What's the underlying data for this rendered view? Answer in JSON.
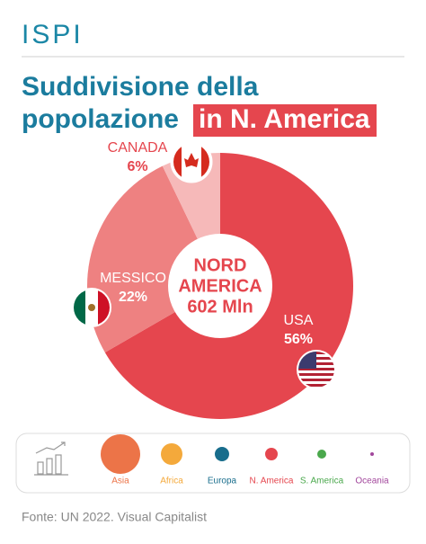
{
  "header": {
    "logo": "ISPI"
  },
  "chart_data": {
    "type": "pie",
    "title": [
      "Suddivisione della",
      "popolazione"
    ],
    "title_highlight": "in N. America",
    "center_label": [
      "NORD",
      "AMERICA",
      "602 Mln"
    ],
    "categories": [
      "USA",
      "MESSICO",
      "CANADA"
    ],
    "values": [
      56,
      22,
      6
    ],
    "value_labels": [
      "56%",
      "22%",
      "6%"
    ],
    "colors": [
      "#e5464e",
      "#ee8181",
      "#f6b9b9"
    ]
  },
  "legend": {
    "items": [
      {
        "label": "Asia",
        "color": "#ec7448"
      },
      {
        "label": "Africa",
        "color": "#f4a93b"
      },
      {
        "label": "Europa",
        "color": "#186d8c"
      },
      {
        "label": "N. America",
        "color": "#e5464e"
      },
      {
        "label": "S. America",
        "color": "#4aa84c"
      },
      {
        "label": "Oceania",
        "color": "#a2479c"
      }
    ]
  },
  "source": "Fonte: UN 2022. Visual Capitalist"
}
